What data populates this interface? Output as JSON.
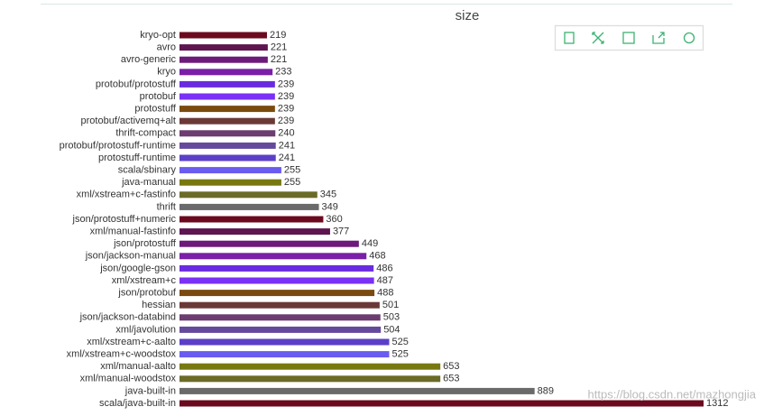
{
  "chart_data": {
    "type": "bar",
    "orientation": "horizontal",
    "title": "size",
    "categories": [
      "kryo-opt",
      "avro",
      "avro-generic",
      "kryo",
      "protobuf/protostuff",
      "protobuf",
      "protostuff",
      "protobuf/activemq+alt",
      "thrift-compact",
      "protobuf/protostuff-runtime",
      "protostuff-runtime",
      "scala/sbinary",
      "java-manual",
      "xml/xstream+c-fastinfo",
      "thrift",
      "json/protostuff+numeric",
      "xml/manual-fastinfo",
      "json/protostuff",
      "json/jackson-manual",
      "json/google-gson",
      "xml/xstream+c",
      "json/protobuf",
      "hessian",
      "json/jackson-databind",
      "xml/javolution",
      "xml/xstream+c-aalto",
      "xml/xstream+c-woodstox",
      "xml/manual-aalto",
      "xml/manual-woodstox",
      "java-built-in",
      "scala/java-built-in"
    ],
    "values": [
      219,
      221,
      221,
      233,
      239,
      239,
      239,
      239,
      240,
      241,
      241,
      255,
      255,
      345,
      349,
      360,
      377,
      449,
      468,
      486,
      487,
      488,
      501,
      503,
      504,
      525,
      525,
      653,
      653,
      889,
      1312
    ],
    "colors": [
      "#6b0a1e",
      "#5e1550",
      "#6d1a7a",
      "#7a1fa8",
      "#6a2be0",
      "#7a30f5",
      "#7a4a10",
      "#6b3838",
      "#6b3d70",
      "#654a9c",
      "#5b3fc8",
      "#6a5cf0",
      "#787810",
      "#6b6b28",
      "#6a6a6a",
      "#6b0a1e",
      "#5e1550",
      "#6d1a7a",
      "#7a1fa8",
      "#6a2be0",
      "#7a30f5",
      "#7a4a10",
      "#6b3838",
      "#6b3d70",
      "#654a9c",
      "#5b3fc8",
      "#6a5cf0",
      "#787810",
      "#6b6b28",
      "#6a6a6a",
      "#6b0a1e"
    ],
    "xlim": [
      0,
      1312
    ],
    "watermark": "https://blog.csdn.net/mazhongjia"
  }
}
